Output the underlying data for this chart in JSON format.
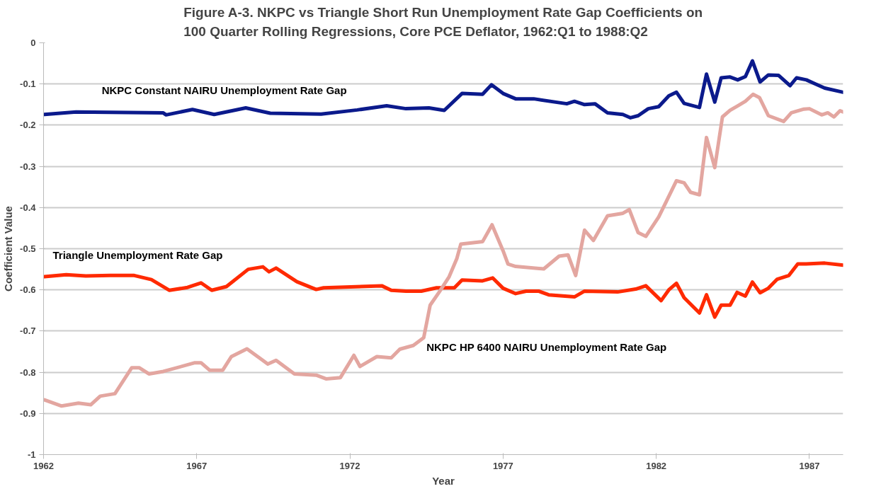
{
  "chart_data": {
    "type": "line",
    "title": "Figure A-3. NKPC vs Triangle Short Run Unemployment Rate Gap Coefficients on\n100 Quarter Rolling Regressions, Core PCE Deflator, 1962:Q1 to 1988:Q2",
    "xlabel": "Year",
    "ylabel": "Coefficient Value",
    "xlim": [
      1962,
      1988.1
    ],
    "xticks": [
      1962,
      1967,
      1972,
      1977,
      1982,
      1987
    ],
    "ylim": [
      -1,
      0
    ],
    "yticks": [
      -1,
      -0.9,
      -0.8,
      -0.7,
      -0.6,
      -0.5,
      -0.4,
      -0.3,
      -0.2,
      -0.1,
      0
    ],
    "grid": "y",
    "legend": false,
    "marker": "none",
    "line_style": "solid",
    "series": [
      {
        "name": "NKPC Constant NAIRU Unemployment Rate Gap",
        "color": "#0b1a8c",
        "x": [
          1962.03,
          1963.06,
          1965.9,
          1966.0,
          1966.86,
          1967.57,
          1968.6,
          1969.4,
          1971.06,
          1972.24,
          1973.2,
          1973.83,
          1974.58,
          1975.08,
          1975.66,
          1976.33,
          1976.62,
          1977.0,
          1977.41,
          1978.0,
          1979.08,
          1979.33,
          1979.66,
          1980.0,
          1980.41,
          1980.91,
          1981.16,
          1981.41,
          1981.74,
          1982.08,
          1982.41,
          1982.66,
          1982.91,
          1983.41,
          1983.64,
          1983.91,
          1984.12,
          1984.41,
          1984.66,
          1984.91,
          1985.14,
          1985.39,
          1985.66,
          1985.99,
          1986.37,
          1986.58,
          1986.9,
          1987.2,
          1987.5,
          1988.1
        ],
        "values": [
          -0.174,
          -0.168,
          -0.17,
          -0.175,
          -0.162,
          -0.174,
          -0.158,
          -0.171,
          -0.173,
          -0.163,
          -0.153,
          -0.16,
          -0.158,
          -0.164,
          -0.123,
          -0.125,
          -0.102,
          -0.123,
          -0.136,
          -0.136,
          -0.148,
          -0.142,
          -0.15,
          -0.148,
          -0.17,
          -0.174,
          -0.182,
          -0.177,
          -0.16,
          -0.155,
          -0.129,
          -0.12,
          -0.147,
          -0.157,
          -0.076,
          -0.144,
          -0.085,
          -0.083,
          -0.09,
          -0.082,
          -0.044,
          -0.095,
          -0.078,
          -0.079,
          -0.104,
          -0.085,
          -0.09,
          -0.1,
          -0.11,
          -0.12
        ]
      },
      {
        "name": "Triangle Unemployment Rate Gap",
        "color": "#ff2a00",
        "x": [
          1962.03,
          1962.74,
          1963.38,
          1964.17,
          1964.96,
          1965.52,
          1966.11,
          1966.7,
          1967.14,
          1967.49,
          1967.97,
          1968.68,
          1969.16,
          1969.36,
          1969.59,
          1970.27,
          1970.9,
          1971.14,
          1973.04,
          1973.35,
          1973.83,
          1974.33,
          1974.83,
          1975.41,
          1975.66,
          1976.33,
          1976.66,
          1977.0,
          1977.41,
          1977.75,
          1978.16,
          1978.49,
          1979.33,
          1979.66,
          1980.74,
          1981.33,
          1981.66,
          1982.16,
          1982.41,
          1982.66,
          1982.91,
          1983.41,
          1983.64,
          1983.91,
          1984.12,
          1984.41,
          1984.64,
          1984.91,
          1985.14,
          1985.39,
          1985.66,
          1985.95,
          1986.33,
          1986.62,
          1986.89,
          1987.5,
          1988.1
        ],
        "values": [
          -0.568,
          -0.563,
          -0.566,
          -0.565,
          -0.565,
          -0.575,
          -0.601,
          -0.594,
          -0.583,
          -0.601,
          -0.592,
          -0.55,
          -0.544,
          -0.556,
          -0.547,
          -0.58,
          -0.599,
          -0.595,
          -0.59,
          -0.601,
          -0.603,
          -0.603,
          -0.595,
          -0.595,
          -0.576,
          -0.578,
          -0.571,
          -0.596,
          -0.609,
          -0.603,
          -0.603,
          -0.612,
          -0.617,
          -0.603,
          -0.605,
          -0.598,
          -0.59,
          -0.626,
          -0.6,
          -0.584,
          -0.619,
          -0.656,
          -0.612,
          -0.666,
          -0.637,
          -0.637,
          -0.606,
          -0.615,
          -0.581,
          -0.607,
          -0.596,
          -0.574,
          -0.565,
          -0.537,
          -0.537,
          -0.535,
          -0.54
        ]
      },
      {
        "name": "NKPC HP 6400 NAIRU Unemployment Rate Gap",
        "color": "#e3a6a0",
        "x": [
          1962.03,
          1962.59,
          1963.14,
          1963.54,
          1963.85,
          1964.33,
          1964.88,
          1965.12,
          1965.44,
          1965.91,
          1966.94,
          1967.14,
          1967.42,
          1967.85,
          1968.13,
          1968.64,
          1969.32,
          1969.59,
          1970.19,
          1970.9,
          1971.22,
          1971.69,
          1972.13,
          1972.33,
          1972.88,
          1973.35,
          1973.63,
          1974.07,
          1974.41,
          1974.62,
          1974.91,
          1975.24,
          1975.49,
          1975.62,
          1976.33,
          1976.64,
          1977.0,
          1977.16,
          1977.41,
          1978.33,
          1978.83,
          1979.12,
          1979.37,
          1979.66,
          1979.95,
          1980.41,
          1980.91,
          1981.12,
          1981.41,
          1981.66,
          1982.08,
          1982.33,
          1982.66,
          1982.91,
          1983.12,
          1983.41,
          1983.64,
          1983.91,
          1984.16,
          1984.41,
          1984.66,
          1984.91,
          1985.16,
          1985.37,
          1985.66,
          1986.16,
          1986.41,
          1986.82,
          1987.0,
          1987.4,
          1987.6,
          1987.8,
          1988.0,
          1988.1
        ],
        "values": [
          -0.867,
          -0.882,
          -0.875,
          -0.879,
          -0.858,
          -0.852,
          -0.789,
          -0.789,
          -0.804,
          -0.798,
          -0.777,
          -0.777,
          -0.795,
          -0.795,
          -0.762,
          -0.743,
          -0.78,
          -0.771,
          -0.804,
          -0.807,
          -0.816,
          -0.813,
          -0.759,
          -0.786,
          -0.762,
          -0.765,
          -0.744,
          -0.735,
          -0.716,
          -0.637,
          -0.606,
          -0.568,
          -0.524,
          -0.489,
          -0.483,
          -0.442,
          -0.505,
          -0.537,
          -0.543,
          -0.549,
          -0.518,
          -0.515,
          -0.565,
          -0.455,
          -0.48,
          -0.42,
          -0.414,
          -0.405,
          -0.461,
          -0.47,
          -0.423,
          -0.385,
          -0.335,
          -0.34,
          -0.363,
          -0.369,
          -0.23,
          -0.303,
          -0.18,
          -0.164,
          -0.153,
          -0.142,
          -0.125,
          -0.133,
          -0.177,
          -0.191,
          -0.17,
          -0.161,
          -0.16,
          -0.175,
          -0.17,
          -0.18,
          -0.165,
          -0.168
        ]
      }
    ]
  }
}
